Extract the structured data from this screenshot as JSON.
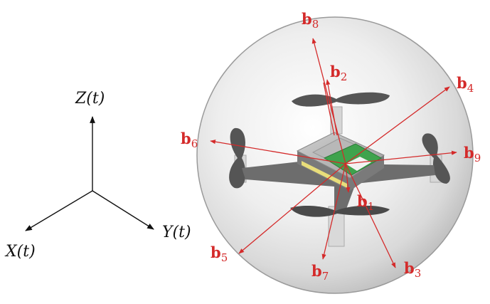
{
  "axes": {
    "x_label": "X(t)",
    "y_label": "Y(t)",
    "z_label": "Z(t)"
  },
  "vectors": [
    {
      "id": "b1",
      "base": "b",
      "sub": "1"
    },
    {
      "id": "b2",
      "base": "b",
      "sub": "2"
    },
    {
      "id": "b3",
      "base": "b",
      "sub": "3"
    },
    {
      "id": "b4",
      "base": "b",
      "sub": "4"
    },
    {
      "id": "b5",
      "base": "b",
      "sub": "5"
    },
    {
      "id": "b6",
      "base": "b",
      "sub": "6"
    },
    {
      "id": "b7",
      "base": "b",
      "sub": "7"
    },
    {
      "id": "b8",
      "base": "b",
      "sub": "8"
    },
    {
      "id": "b9",
      "base": "b",
      "sub": "9"
    }
  ],
  "colors": {
    "vector": "#d42a2a",
    "axis": "#111111",
    "sphere_edge": "#9a9a9a",
    "drone_body": "#8a8a8a",
    "board": "#3fa34d"
  }
}
